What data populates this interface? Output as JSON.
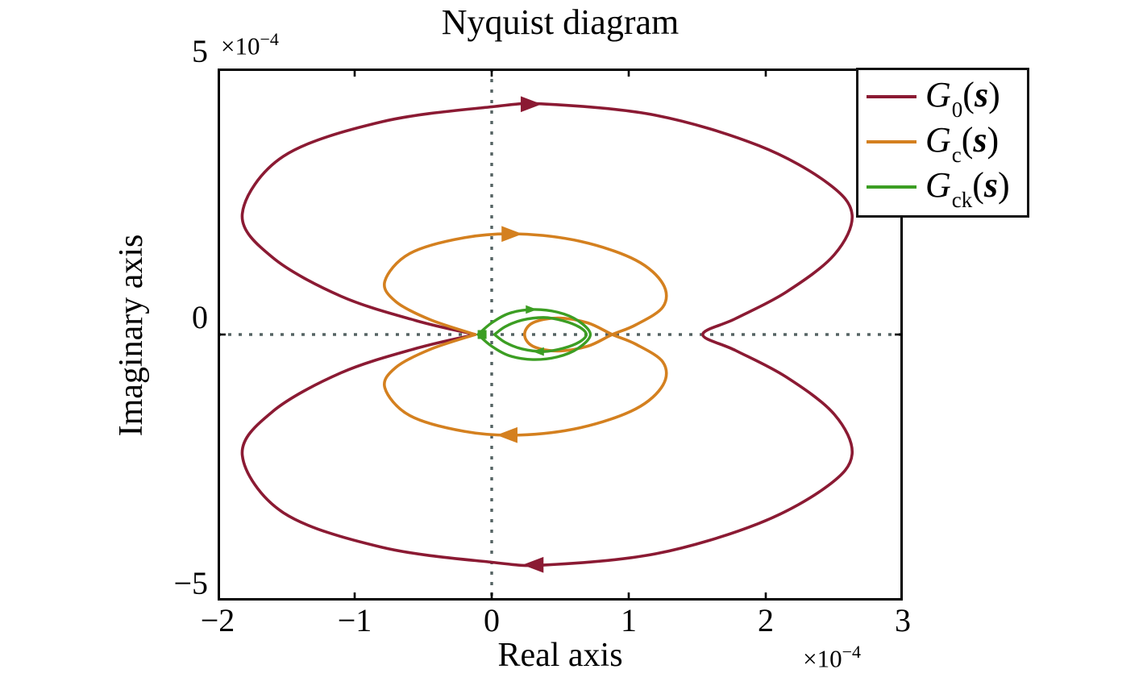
{
  "figure": {
    "background": "#ffffff",
    "frame_color": "#000000",
    "text_color": "#000000"
  },
  "chart_data": {
    "type": "line",
    "subtype": "nyquist",
    "title": "Nyquist diagram",
    "xlabel": "Real axis",
    "ylabel": "Imaginary axis",
    "x_multiplier": {
      "prefix": "×10",
      "exponent": "−4"
    },
    "y_multiplier": {
      "prefix": "×10",
      "exponent": "−4"
    },
    "scale": 0.0001,
    "xlim": [
      -2,
      3
    ],
    "ylim": [
      -5,
      5
    ],
    "grid": false,
    "legend_position": "top-right",
    "xticks": {
      "values": [
        -2,
        -1,
        0,
        1,
        2,
        3
      ],
      "labels": [
        "−2",
        "−1",
        "0",
        "1",
        "2",
        "3"
      ]
    },
    "yticks": {
      "values": [
        -5,
        0,
        5
      ],
      "labels": [
        "−5",
        "0",
        "5"
      ]
    },
    "reference_lines": {
      "vertical_x": 0,
      "horizontal_y": 0,
      "color": "#556363",
      "style": "dotted"
    },
    "series": [
      {
        "id": "g0",
        "name": "G_0(s)",
        "legend": {
          "base": "G",
          "sub": "0",
          "open": "(",
          "var": "s",
          "close": ")"
        },
        "color": "#8B1A33",
        "line_width": 3.6,
        "arrow_size": 26,
        "symmetric_about_real_axis": true,
        "half_paths": [
          [
            [
              -0.12,
              0.0
            ],
            [
              -0.55,
              0.26
            ],
            [
              -1.1,
              0.72
            ],
            [
              -1.6,
              1.45
            ],
            [
              -1.82,
              2.27
            ],
            [
              -1.52,
              3.35
            ],
            [
              -0.8,
              4.0
            ],
            [
              0.0,
              4.28
            ],
            [
              0.4,
              4.33
            ],
            [
              1.2,
              4.12
            ],
            [
              1.95,
              3.55
            ],
            [
              2.45,
              2.85
            ],
            [
              2.63,
              2.25
            ],
            [
              2.5,
              1.5
            ],
            [
              2.15,
              0.8
            ],
            [
              1.78,
              0.3
            ],
            [
              1.54,
              0.0
            ]
          ]
        ],
        "real_axis_crossings": [
          -0.12,
          1.54
        ],
        "arrows": [
          {
            "x": 0.27,
            "y": 4.33,
            "dir": "right"
          },
          {
            "x": 0.32,
            "y": -4.33,
            "dir": "left"
          }
        ],
        "markers": []
      },
      {
        "id": "gc",
        "name": "G_c(s)",
        "legend": {
          "base": "G",
          "sub": "c",
          "open": "(",
          "var": "s",
          "close": ")"
        },
        "color": "#D4801F",
        "line_width": 3.6,
        "arrow_size": 26,
        "symmetric_about_real_axis": true,
        "half_paths": [
          [
            [
              -0.12,
              0.0
            ],
            [
              -0.45,
              0.28
            ],
            [
              -0.7,
              0.62
            ],
            [
              -0.78,
              1.0
            ],
            [
              -0.6,
              1.52
            ],
            [
              -0.2,
              1.82
            ],
            [
              0.2,
              1.89
            ],
            [
              0.65,
              1.75
            ],
            [
              1.05,
              1.4
            ],
            [
              1.25,
              0.95
            ],
            [
              1.25,
              0.52
            ],
            [
              1.05,
              0.18
            ],
            [
              0.88,
              0.0
            ],
            [
              0.7,
              -0.22
            ],
            [
              0.48,
              -0.31
            ],
            [
              0.3,
              -0.22
            ],
            [
              0.24,
              0.0
            ]
          ]
        ],
        "real_axis_crossings": [
          -0.12,
          0.88,
          0.24
        ],
        "arrows": [
          {
            "x": 0.13,
            "y": 1.89,
            "dir": "right"
          },
          {
            "x": 0.13,
            "y": -1.89,
            "dir": "left"
          }
        ],
        "markers": []
      },
      {
        "id": "gck",
        "name": "G_ck(s)",
        "legend": {
          "base": "G",
          "sub": "ck",
          "open": "(",
          "var": "s",
          "close": ")"
        },
        "color": "#3C9E23",
        "line_width": 3.4,
        "arrow_size": 14,
        "symmetric_about_real_axis": true,
        "half_paths": [
          [
            [
              -0.1,
              0.0
            ],
            [
              0.0,
              0.22
            ],
            [
              0.13,
              0.4
            ],
            [
              0.3,
              0.47
            ],
            [
              0.48,
              0.42
            ],
            [
              0.63,
              0.26
            ],
            [
              0.72,
              0.0
            ]
          ],
          [
            [
              0.02,
              0.0
            ],
            [
              0.1,
              0.15
            ],
            [
              0.22,
              0.27
            ],
            [
              0.38,
              0.32
            ],
            [
              0.52,
              0.26
            ],
            [
              0.64,
              0.14
            ],
            [
              0.69,
              0.0
            ]
          ]
        ],
        "real_axis_crossings": [
          -0.1,
          0.72,
          0.02,
          0.69
        ],
        "arrows": [
          {
            "x": 0.28,
            "y": 0.47,
            "dir": "right"
          },
          {
            "x": 0.35,
            "y": -0.32,
            "dir": "left"
          }
        ],
        "markers": [
          {
            "shape": "square",
            "x": -0.07,
            "y": 0.0,
            "size": 11
          }
        ]
      }
    ]
  }
}
